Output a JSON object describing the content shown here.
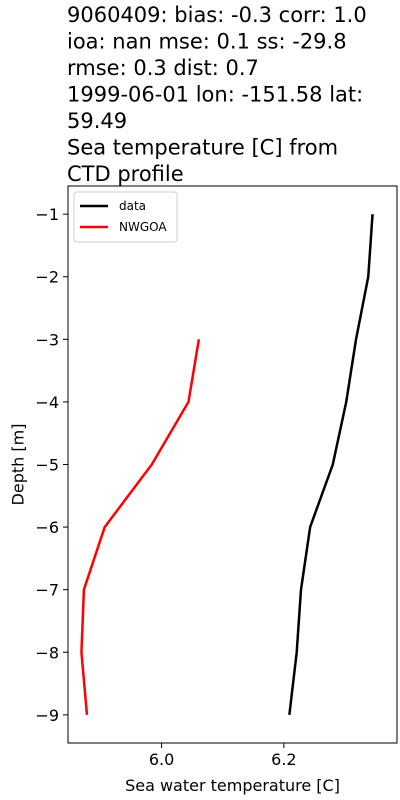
{
  "chart_data": {
    "type": "line",
    "title_lines": [
      "9060409: bias: -0.3  corr: 1.0",
      "ioa: nan  mse: 0.1  ss: -29.8",
      "rmse: 0.3  dist: 0.7",
      "1999-06-01 lon: -151.58 lat:",
      "59.49",
      "Sea temperature [C] from",
      "CTD profile"
    ],
    "xlabel": "Sea water temperature [C]",
    "ylabel": "Depth [m]",
    "xlim": [
      5.847,
      6.385
    ],
    "ylim": [
      -9.45,
      -0.55
    ],
    "xticks": [
      6.0,
      6.2
    ],
    "xtick_labels": [
      "6.0",
      "6.2"
    ],
    "yticks": [
      -1,
      -2,
      -3,
      -4,
      -5,
      -6,
      -7,
      -8,
      -9
    ],
    "ytick_labels": [
      "−1",
      "−2",
      "−3",
      "−4",
      "−5",
      "−6",
      "−7",
      "−8",
      "−9"
    ],
    "grid": false,
    "legend_position": "top-left",
    "series": [
      {
        "name": "data",
        "color": "#000000",
        "points": [
          {
            "x": 6.345,
            "y": -1
          },
          {
            "x": 6.338,
            "y": -2
          },
          {
            "x": 6.318,
            "y": -3
          },
          {
            "x": 6.302,
            "y": -4
          },
          {
            "x": 6.28,
            "y": -5
          },
          {
            "x": 6.243,
            "y": -6
          },
          {
            "x": 6.228,
            "y": -7
          },
          {
            "x": 6.221,
            "y": -8
          },
          {
            "x": 6.209,
            "y": -9
          }
        ]
      },
      {
        "name": "NWGOA",
        "color": "#ff0000",
        "points": [
          {
            "x": 6.061,
            "y": -3
          },
          {
            "x": 6.044,
            "y": -4
          },
          {
            "x": 5.984,
            "y": -5
          },
          {
            "x": 5.907,
            "y": -6
          },
          {
            "x": 5.873,
            "y": -7
          },
          {
            "x": 5.869,
            "y": -8
          },
          {
            "x": 5.878,
            "y": -9
          }
        ]
      }
    ]
  }
}
